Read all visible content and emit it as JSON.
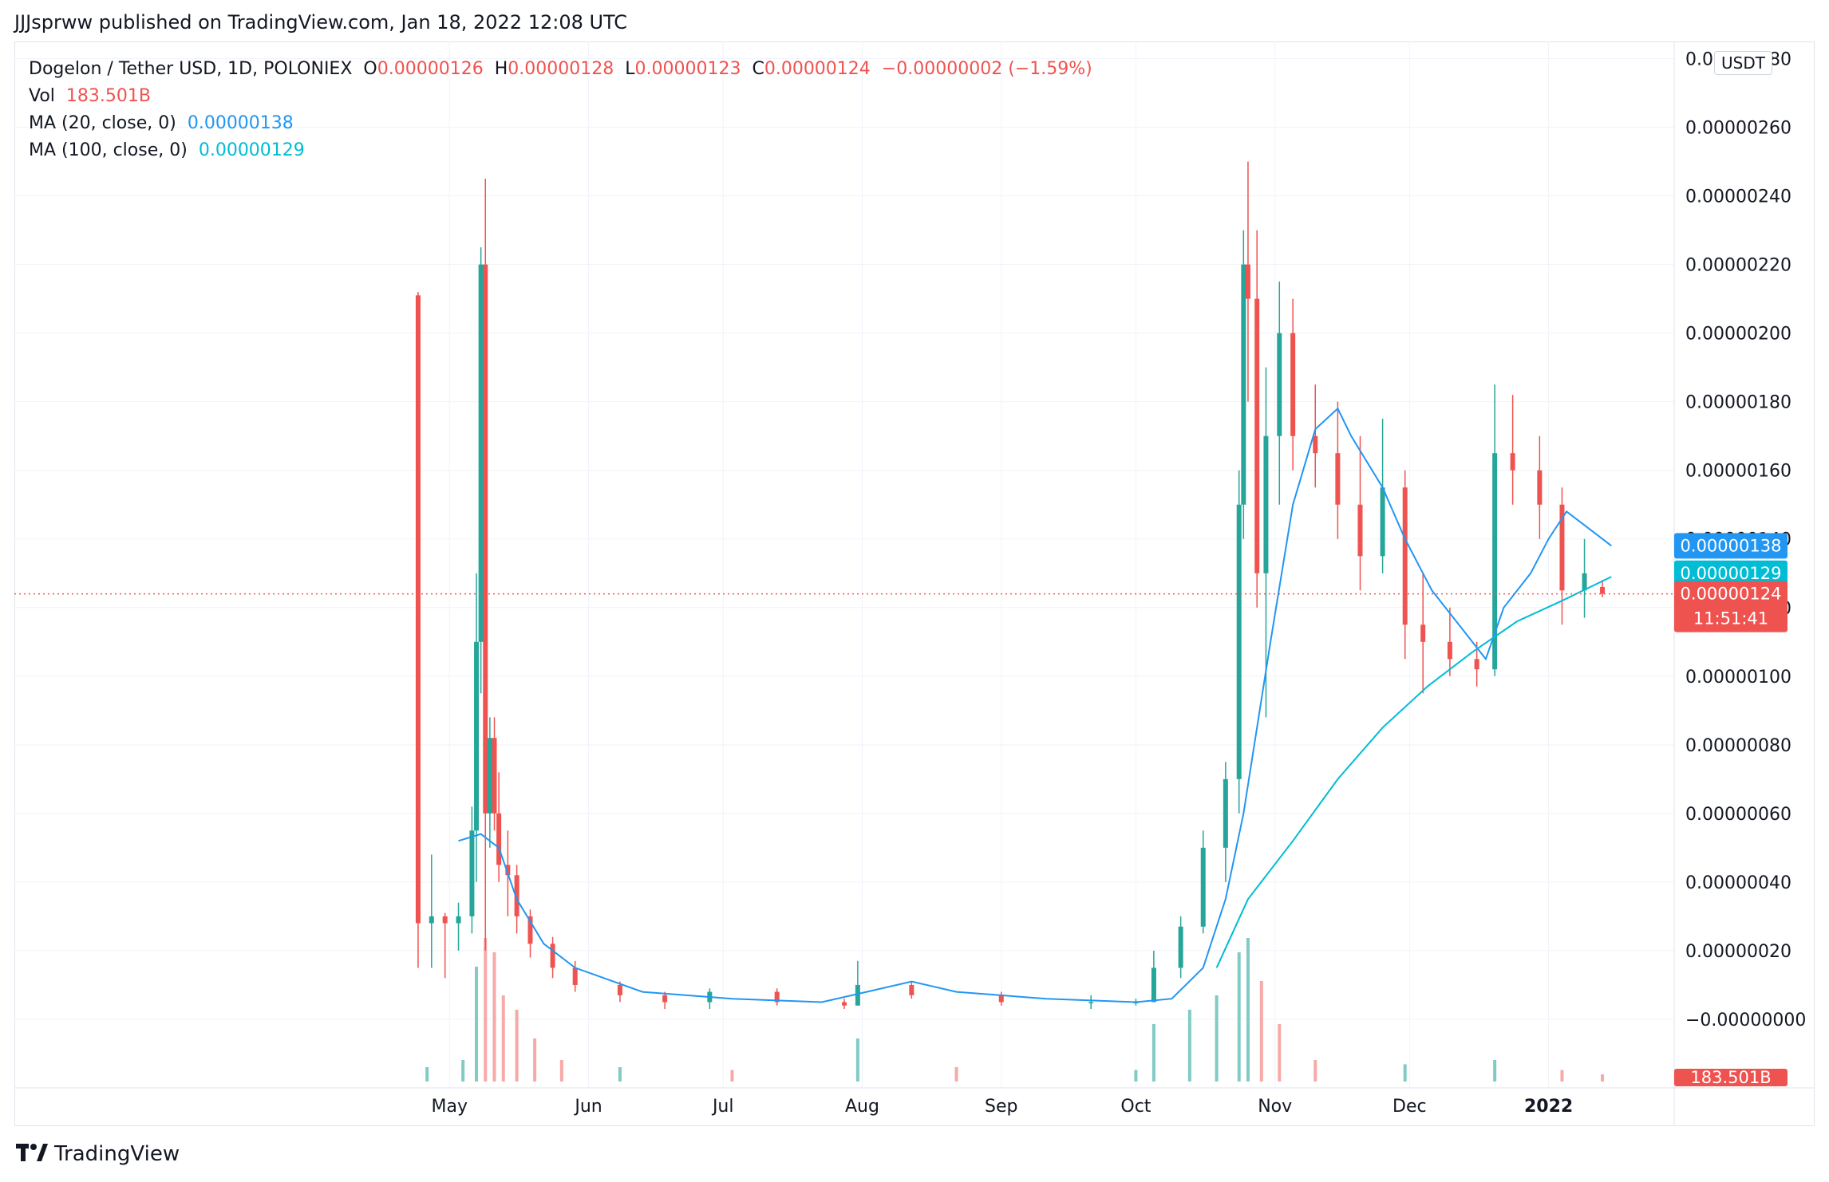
{
  "header": {
    "publish_note": "JJJsprww published on TradingView.com, Jan 18, 2022 12:08 UTC"
  },
  "legend": {
    "symbol": "Dogelon / Tether USD, 1D, POLONIEX",
    "o_label": "O",
    "o_value": "0.00000126",
    "h_label": "H",
    "h_value": "0.00000128",
    "l_label": "L",
    "l_value": "0.00000123",
    "c_label": "C",
    "c_value": "0.00000124",
    "change": "−0.00000002 (−1.59%)",
    "vol_label": "Vol",
    "vol_value": "183.501B",
    "ma20_label": "MA (20, close, 0)",
    "ma20_value": "0.00000138",
    "ma100_label": "MA (100, close, 0)",
    "ma100_value": "0.00000129"
  },
  "price_axis": {
    "currency": "USDT"
  },
  "badges": {
    "ma20": "0.00000138",
    "ma100": "0.00000129",
    "last": "0.00000124",
    "countdown": "11:51:41",
    "volume": "183.501B"
  },
  "footer": {
    "brand": "TradingView",
    "logo_icon": "tradingview-logo-icon"
  },
  "colors": {
    "up": "#26a69a",
    "down": "#ef5350",
    "ma20": "#2196f3",
    "ma100": "#00bcd4",
    "vol_up": "#80cbc4",
    "vol_down": "#f7a9a7"
  },
  "chart_data": {
    "type": "candlestick",
    "title": "Dogelon / Tether USD, 1D, POLONIEX",
    "y_ticks": [
      "0.00000280",
      "0.00000260",
      "0.00000240",
      "0.00000220",
      "0.00000200",
      "0.00000180",
      "0.00000160",
      "0.00000140",
      "0.00000120",
      "0.00000100",
      "0.00000080",
      "0.00000060",
      "0.00000040",
      "0.00000020",
      "−0.00000000"
    ],
    "y_tick_values": [
      2.8,
      2.6,
      2.4,
      2.2,
      2.0,
      1.8,
      1.6,
      1.4,
      1.2,
      1.0,
      0.8,
      0.6,
      0.4,
      0.2,
      0.0
    ],
    "ylim": [
      -0.2,
      2.85
    ],
    "y_unit_multiplier": "1e-6",
    "x_ticks": [
      "May",
      "Jun",
      "Jul",
      "Aug",
      "Sep",
      "Oct",
      "Nov",
      "Dec",
      "2022"
    ],
    "x_tick_days": [
      7,
      38,
      68,
      99,
      130,
      160,
      191,
      221,
      252
    ],
    "xlim_days": [
      -90,
      280
    ],
    "last_price": 1.24,
    "candles": [
      {
        "day": 0,
        "o": 2.11,
        "h": 2.12,
        "l": 0.15,
        "c": 0.28
      },
      {
        "day": 3,
        "o": 0.28,
        "h": 0.48,
        "l": 0.15,
        "c": 0.3
      },
      {
        "day": 6,
        "o": 0.3,
        "h": 0.31,
        "l": 0.12,
        "c": 0.28
      },
      {
        "day": 9,
        "o": 0.28,
        "h": 0.34,
        "l": 0.2,
        "c": 0.3
      },
      {
        "day": 12,
        "o": 0.3,
        "h": 0.62,
        "l": 0.25,
        "c": 0.55
      },
      {
        "day": 13,
        "o": 0.55,
        "h": 1.3,
        "l": 0.4,
        "c": 1.1
      },
      {
        "day": 14,
        "o": 1.1,
        "h": 2.25,
        "l": 0.95,
        "c": 2.2
      },
      {
        "day": 15,
        "o": 2.2,
        "h": 2.45,
        "l": 0.2,
        "c": 0.6
      },
      {
        "day": 16,
        "o": 0.6,
        "h": 0.88,
        "l": 0.5,
        "c": 0.82
      },
      {
        "day": 17,
        "o": 0.82,
        "h": 0.88,
        "l": 0.55,
        "c": 0.6
      },
      {
        "day": 18,
        "o": 0.6,
        "h": 0.72,
        "l": 0.4,
        "c": 0.45
      },
      {
        "day": 20,
        "o": 0.45,
        "h": 0.55,
        "l": 0.3,
        "c": 0.42
      },
      {
        "day": 22,
        "o": 0.42,
        "h": 0.45,
        "l": 0.25,
        "c": 0.3
      },
      {
        "day": 25,
        "o": 0.3,
        "h": 0.32,
        "l": 0.18,
        "c": 0.22
      },
      {
        "day": 30,
        "o": 0.22,
        "h": 0.24,
        "l": 0.12,
        "c": 0.15
      },
      {
        "day": 35,
        "o": 0.15,
        "h": 0.17,
        "l": 0.08,
        "c": 0.1
      },
      {
        "day": 45,
        "o": 0.1,
        "h": 0.11,
        "l": 0.05,
        "c": 0.07
      },
      {
        "day": 55,
        "o": 0.07,
        "h": 0.08,
        "l": 0.03,
        "c": 0.05
      },
      {
        "day": 65,
        "o": 0.05,
        "h": 0.09,
        "l": 0.03,
        "c": 0.08
      },
      {
        "day": 80,
        "o": 0.08,
        "h": 0.09,
        "l": 0.04,
        "c": 0.05
      },
      {
        "day": 95,
        "o": 0.05,
        "h": 0.06,
        "l": 0.03,
        "c": 0.04
      },
      {
        "day": 98,
        "o": 0.04,
        "h": 0.17,
        "l": 0.04,
        "c": 0.1
      },
      {
        "day": 110,
        "o": 0.1,
        "h": 0.11,
        "l": 0.06,
        "c": 0.07
      },
      {
        "day": 130,
        "o": 0.07,
        "h": 0.08,
        "l": 0.04,
        "c": 0.05
      },
      {
        "day": 150,
        "o": 0.05,
        "h": 0.07,
        "l": 0.03,
        "c": 0.05
      },
      {
        "day": 160,
        "o": 0.05,
        "h": 0.06,
        "l": 0.04,
        "c": 0.05
      },
      {
        "day": 164,
        "o": 0.05,
        "h": 0.2,
        "l": 0.05,
        "c": 0.15
      },
      {
        "day": 170,
        "o": 0.15,
        "h": 0.3,
        "l": 0.12,
        "c": 0.27
      },
      {
        "day": 175,
        "o": 0.27,
        "h": 0.55,
        "l": 0.25,
        "c": 0.5
      },
      {
        "day": 180,
        "o": 0.5,
        "h": 0.75,
        "l": 0.4,
        "c": 0.7
      },
      {
        "day": 183,
        "o": 0.7,
        "h": 1.6,
        "l": 0.6,
        "c": 1.5
      },
      {
        "day": 184,
        "o": 1.5,
        "h": 2.3,
        "l": 1.4,
        "c": 2.2
      },
      {
        "day": 185,
        "o": 2.2,
        "h": 2.5,
        "l": 1.8,
        "c": 2.1
      },
      {
        "day": 187,
        "o": 2.1,
        "h": 2.3,
        "l": 1.2,
        "c": 1.3
      },
      {
        "day": 189,
        "o": 1.3,
        "h": 1.9,
        "l": 0.88,
        "c": 1.7
      },
      {
        "day": 192,
        "o": 1.7,
        "h": 2.15,
        "l": 1.5,
        "c": 2.0
      },
      {
        "day": 195,
        "o": 2.0,
        "h": 2.1,
        "l": 1.6,
        "c": 1.7
      },
      {
        "day": 200,
        "o": 1.7,
        "h": 1.85,
        "l": 1.55,
        "c": 1.65
      },
      {
        "day": 205,
        "o": 1.65,
        "h": 1.8,
        "l": 1.4,
        "c": 1.5
      },
      {
        "day": 210,
        "o": 1.5,
        "h": 1.7,
        "l": 1.25,
        "c": 1.35
      },
      {
        "day": 215,
        "o": 1.35,
        "h": 1.75,
        "l": 1.3,
        "c": 1.55
      },
      {
        "day": 220,
        "o": 1.55,
        "h": 1.6,
        "l": 1.05,
        "c": 1.15
      },
      {
        "day": 224,
        "o": 1.15,
        "h": 1.3,
        "l": 0.95,
        "c": 1.1
      },
      {
        "day": 230,
        "o": 1.1,
        "h": 1.2,
        "l": 1.0,
        "c": 1.05
      },
      {
        "day": 236,
        "o": 1.05,
        "h": 1.1,
        "l": 0.97,
        "c": 1.02
      },
      {
        "day": 240,
        "o": 1.02,
        "h": 1.85,
        "l": 1.0,
        "c": 1.65
      },
      {
        "day": 244,
        "o": 1.65,
        "h": 1.82,
        "l": 1.5,
        "c": 1.6
      },
      {
        "day": 250,
        "o": 1.6,
        "h": 1.7,
        "l": 1.4,
        "c": 1.5
      },
      {
        "day": 255,
        "o": 1.5,
        "h": 1.55,
        "l": 1.15,
        "c": 1.25
      },
      {
        "day": 260,
        "o": 1.25,
        "h": 1.4,
        "l": 1.17,
        "c": 1.3
      },
      {
        "day": 264,
        "o": 1.26,
        "h": 1.28,
        "l": 1.23,
        "c": 1.24
      }
    ],
    "ma20": [
      [
        9,
        0.52
      ],
      [
        14,
        0.54
      ],
      [
        18,
        0.5
      ],
      [
        22,
        0.35
      ],
      [
        28,
        0.22
      ],
      [
        35,
        0.15
      ],
      [
        50,
        0.08
      ],
      [
        70,
        0.06
      ],
      [
        90,
        0.05
      ],
      [
        100,
        0.08
      ],
      [
        110,
        0.11
      ],
      [
        120,
        0.08
      ],
      [
        140,
        0.06
      ],
      [
        160,
        0.05
      ],
      [
        168,
        0.06
      ],
      [
        175,
        0.15
      ],
      [
        180,
        0.35
      ],
      [
        184,
        0.6
      ],
      [
        190,
        1.1
      ],
      [
        195,
        1.5
      ],
      [
        200,
        1.72
      ],
      [
        205,
        1.78
      ],
      [
        208,
        1.7
      ],
      [
        215,
        1.55
      ],
      [
        220,
        1.4
      ],
      [
        226,
        1.25
      ],
      [
        232,
        1.15
      ],
      [
        238,
        1.05
      ],
      [
        242,
        1.2
      ],
      [
        248,
        1.3
      ],
      [
        252,
        1.4
      ],
      [
        256,
        1.48
      ],
      [
        262,
        1.42
      ],
      [
        266,
        1.38
      ]
    ],
    "ma100": [
      [
        178,
        0.15
      ],
      [
        185,
        0.35
      ],
      [
        195,
        0.52
      ],
      [
        205,
        0.7
      ],
      [
        215,
        0.85
      ],
      [
        225,
        0.97
      ],
      [
        235,
        1.07
      ],
      [
        245,
        1.16
      ],
      [
        255,
        1.22
      ],
      [
        266,
        1.29
      ]
    ],
    "volume": [
      {
        "day": 2,
        "v": 0.1,
        "up": true
      },
      {
        "day": 10,
        "v": 0.15,
        "up": true
      },
      {
        "day": 13,
        "v": 0.8,
        "up": true
      },
      {
        "day": 15,
        "v": 1.0,
        "up": false
      },
      {
        "day": 17,
        "v": 0.9,
        "up": false
      },
      {
        "day": 19,
        "v": 0.6,
        "up": false
      },
      {
        "day": 22,
        "v": 0.5,
        "up": false
      },
      {
        "day": 26,
        "v": 0.3,
        "up": false
      },
      {
        "day": 32,
        "v": 0.15,
        "up": false
      },
      {
        "day": 45,
        "v": 0.1,
        "up": true
      },
      {
        "day": 70,
        "v": 0.08,
        "up": false
      },
      {
        "day": 98,
        "v": 0.3,
        "up": true
      },
      {
        "day": 120,
        "v": 0.1,
        "up": false
      },
      {
        "day": 160,
        "v": 0.08,
        "up": true
      },
      {
        "day": 164,
        "v": 0.4,
        "up": true
      },
      {
        "day": 172,
        "v": 0.5,
        "up": true
      },
      {
        "day": 178,
        "v": 0.6,
        "up": true
      },
      {
        "day": 183,
        "v": 0.9,
        "up": true
      },
      {
        "day": 185,
        "v": 1.0,
        "up": true
      },
      {
        "day": 188,
        "v": 0.7,
        "up": false
      },
      {
        "day": 192,
        "v": 0.4,
        "up": false
      },
      {
        "day": 200,
        "v": 0.15,
        "up": false
      },
      {
        "day": 220,
        "v": 0.12,
        "up": true
      },
      {
        "day": 240,
        "v": 0.15,
        "up": true
      },
      {
        "day": 255,
        "v": 0.08,
        "up": false
      },
      {
        "day": 264,
        "v": 0.05,
        "up": false
      }
    ]
  }
}
